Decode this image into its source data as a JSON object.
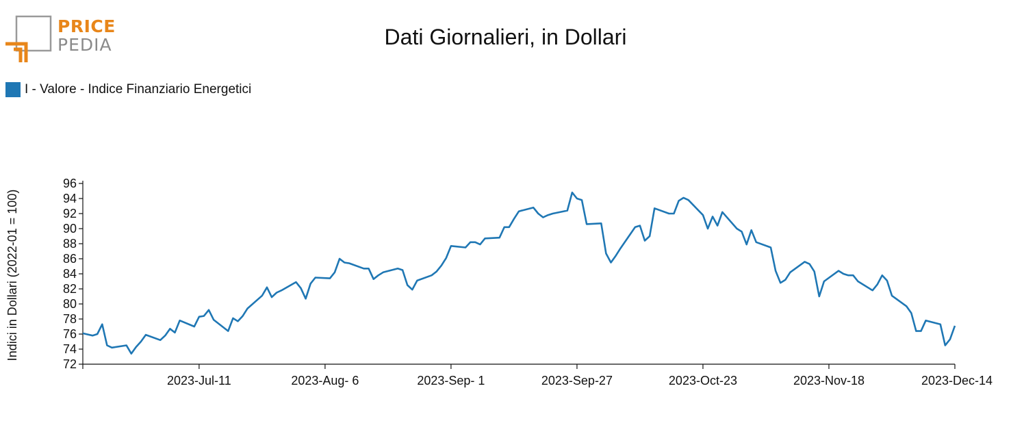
{
  "logo": {
    "word_top": "PRICE",
    "word_bottom": "PEDIA",
    "colors": {
      "accent": "#e8861a",
      "gray": "#8a8a8a"
    }
  },
  "chart_data": {
    "type": "line",
    "title": "Dati Giornalieri, in Dollari",
    "xlabel": "",
    "ylabel": "Indici in Dollari (2022-01 = 100)",
    "ylim": [
      72,
      96
    ],
    "y_ticks": [
      72,
      74,
      76,
      78,
      80,
      82,
      84,
      86,
      88,
      90,
      92,
      94,
      96
    ],
    "x_tick_labels": [
      "2023-Jul-11",
      "2023-Aug- 6",
      "2023-Sep- 1",
      "2023-Sep-27",
      "2023-Oct-23",
      "2023-Nov-18",
      "2023-Dec-14"
    ],
    "x_tick_dates": [
      "2023-07-11",
      "2023-08-06",
      "2023-09-01",
      "2023-09-27",
      "2023-10-23",
      "2023-11-18",
      "2023-12-14"
    ],
    "xlim": [
      "2023-06-17",
      "2023-12-14"
    ],
    "legend": "top-left",
    "grid": false,
    "series": [
      {
        "name": "I - Valore - Indice Finanziario Energetici",
        "color": "#1f77b4",
        "x": [
          "2023-06-17",
          "2023-06-19",
          "2023-06-20",
          "2023-06-21",
          "2023-06-22",
          "2023-06-23",
          "2023-06-26",
          "2023-06-27",
          "2023-06-28",
          "2023-06-29",
          "2023-06-30",
          "2023-07-03",
          "2023-07-04",
          "2023-07-05",
          "2023-07-06",
          "2023-07-07",
          "2023-07-10",
          "2023-07-11",
          "2023-07-12",
          "2023-07-13",
          "2023-07-14",
          "2023-07-17",
          "2023-07-18",
          "2023-07-19",
          "2023-07-20",
          "2023-07-21",
          "2023-07-24",
          "2023-07-25",
          "2023-07-26",
          "2023-07-27",
          "2023-07-28",
          "2023-07-31",
          "2023-08-01",
          "2023-08-02",
          "2023-08-03",
          "2023-08-04",
          "2023-08-07",
          "2023-08-08",
          "2023-08-09",
          "2023-08-10",
          "2023-08-11",
          "2023-08-14",
          "2023-08-15",
          "2023-08-16",
          "2023-08-17",
          "2023-08-18",
          "2023-08-21",
          "2023-08-22",
          "2023-08-23",
          "2023-08-24",
          "2023-08-25",
          "2023-08-28",
          "2023-08-29",
          "2023-08-30",
          "2023-08-31",
          "2023-09-01",
          "2023-09-04",
          "2023-09-05",
          "2023-09-06",
          "2023-09-07",
          "2023-09-08",
          "2023-09-11",
          "2023-09-12",
          "2023-09-13",
          "2023-09-14",
          "2023-09-15",
          "2023-09-18",
          "2023-09-19",
          "2023-09-20",
          "2023-09-21",
          "2023-09-22",
          "2023-09-25",
          "2023-09-26",
          "2023-09-27",
          "2023-09-28",
          "2023-09-29",
          "2023-10-02",
          "2023-10-03",
          "2023-10-04",
          "2023-10-05",
          "2023-10-06",
          "2023-10-09",
          "2023-10-10",
          "2023-10-11",
          "2023-10-12",
          "2023-10-13",
          "2023-10-16",
          "2023-10-17",
          "2023-10-18",
          "2023-10-19",
          "2023-10-20",
          "2023-10-23",
          "2023-10-24",
          "2023-10-25",
          "2023-10-26",
          "2023-10-27",
          "2023-10-30",
          "2023-10-31",
          "2023-11-01",
          "2023-11-02",
          "2023-11-03",
          "2023-11-06",
          "2023-11-07",
          "2023-11-08",
          "2023-11-09",
          "2023-11-10",
          "2023-11-13",
          "2023-11-14",
          "2023-11-15",
          "2023-11-16",
          "2023-11-17",
          "2023-11-20",
          "2023-11-21",
          "2023-11-22",
          "2023-11-23",
          "2023-11-24",
          "2023-11-27",
          "2023-11-28",
          "2023-11-29",
          "2023-11-30",
          "2023-12-01",
          "2023-12-04",
          "2023-12-05",
          "2023-12-06",
          "2023-12-07",
          "2023-12-08",
          "2023-12-11",
          "2023-12-12",
          "2023-12-13",
          "2023-12-14"
        ],
        "y": [
          76.1,
          75.8,
          76.0,
          77.3,
          74.5,
          74.2,
          74.5,
          73.4,
          74.3,
          75.0,
          75.9,
          75.2,
          75.8,
          76.7,
          76.2,
          77.8,
          77.0,
          78.3,
          78.4,
          79.2,
          77.9,
          76.4,
          78.1,
          77.7,
          78.4,
          79.4,
          81.1,
          82.2,
          80.9,
          81.5,
          81.8,
          82.9,
          82.1,
          80.7,
          82.7,
          83.5,
          83.4,
          84.2,
          86.0,
          85.5,
          85.4,
          84.7,
          84.7,
          83.3,
          83.8,
          84.2,
          84.7,
          84.5,
          82.5,
          81.9,
          83.1,
          83.8,
          84.3,
          85.1,
          86.1,
          87.7,
          87.5,
          88.2,
          88.2,
          87.9,
          88.7,
          88.8,
          90.2,
          90.2,
          91.3,
          92.3,
          92.8,
          92.0,
          91.5,
          91.8,
          92.0,
          92.4,
          94.8,
          94.0,
          93.8,
          90.6,
          90.7,
          86.7,
          85.5,
          86.4,
          87.4,
          90.2,
          90.4,
          88.4,
          89.0,
          92.7,
          92.0,
          92.0,
          93.7,
          94.1,
          93.8,
          91.8,
          90.0,
          91.6,
          90.4,
          92.2,
          90.0,
          89.6,
          87.9,
          89.8,
          88.2,
          87.5,
          84.4,
          82.8,
          83.2,
          84.2,
          85.6,
          85.3,
          84.3,
          81.0,
          83.0,
          84.4,
          84.0,
          83.8,
          83.8,
          83.0,
          81.8,
          82.6,
          83.8,
          83.1,
          81.1,
          79.7,
          78.8,
          76.4,
          76.4,
          77.8,
          77.3,
          74.5,
          75.3,
          77.1
        ]
      }
    ]
  }
}
